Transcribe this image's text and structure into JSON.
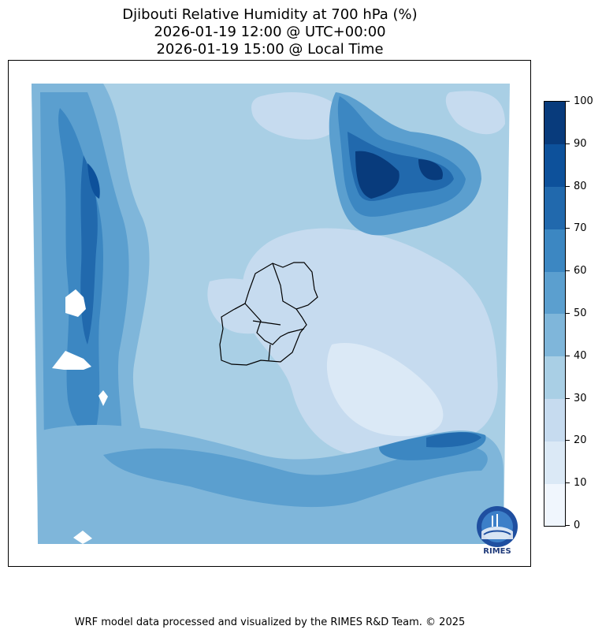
{
  "title": {
    "line1": "Djibouti Relative Humidity at 700 hPa (%)",
    "line2": "2026-01-19 12:00 @ UTC+00:00",
    "line3": "2026-01-19 15:00 @ Local Time"
  },
  "colorbar": {
    "ticks": [
      "0",
      "10",
      "20",
      "30",
      "40",
      "50",
      "60",
      "70",
      "80",
      "90",
      "100"
    ],
    "colors": [
      "#f0f6fd",
      "#dbe9f6",
      "#c6dbef",
      "#a9cfe5",
      "#7fb6da",
      "#5b9fcf",
      "#3c87c2",
      "#2169ad",
      "#0d519b",
      "#083b7c"
    ]
  },
  "logo": {
    "text": "RIMES",
    "icon": "rimes-logo-icon"
  },
  "credit": "WRF model data processed and visualized by the RIMES R&D Team. © 2025"
}
